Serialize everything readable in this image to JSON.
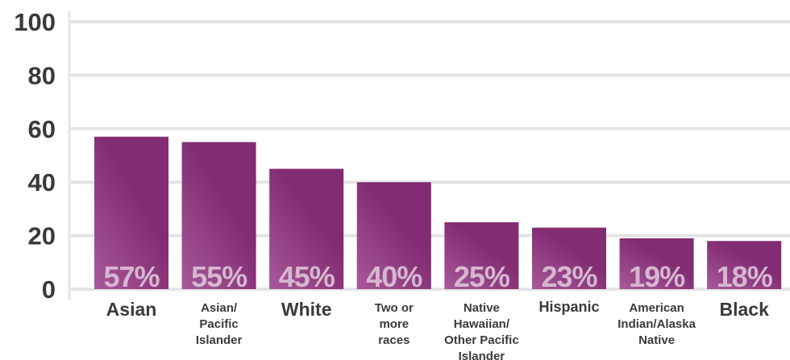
{
  "chart_data": {
    "type": "bar",
    "categories": [
      [
        "Asian"
      ],
      [
        "Asian/",
        "Pacific",
        "Islander"
      ],
      [
        "White"
      ],
      [
        "Two or",
        "more",
        "races"
      ],
      [
        "Native",
        "Hawaiian/",
        "Other Pacific",
        "Islander"
      ],
      [
        "Hispanic"
      ],
      [
        "American",
        "Indian/Alaska",
        "Native"
      ],
      [
        "Black"
      ]
    ],
    "values": [
      57,
      55,
      45,
      40,
      25,
      23,
      19,
      18
    ],
    "data_labels": [
      "57%",
      "55%",
      "45%",
      "40%",
      "25%",
      "23%",
      "19%",
      "18%"
    ],
    "y_ticks": [
      "0",
      "20",
      "40",
      "60",
      "80",
      "100"
    ],
    "ylim": [
      0,
      100
    ],
    "grid": true,
    "title": "",
    "xlabel": "",
    "ylabel": ""
  },
  "colors": {
    "bar": "#822c73",
    "bar_highlight": "#b567a8",
    "grid": "#e4e4e4",
    "axis_text": "#3a3a3a",
    "category_text": "#3a3a3a",
    "data_label": "#d5b7cf"
  }
}
